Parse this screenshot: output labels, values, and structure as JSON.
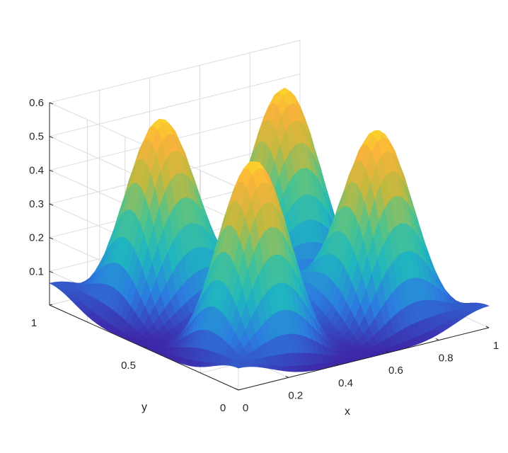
{
  "chart_data": {
    "type": "surface",
    "title": "",
    "xlabel": "x",
    "ylabel": "y",
    "zlabel": "",
    "xlim": [
      0,
      1
    ],
    "ylim": [
      0,
      1
    ],
    "zlim": [
      0,
      0.6
    ],
    "grid": true,
    "colormap": "parula",
    "x_ticks": [
      "0",
      "0.2",
      "0.4",
      "0.6",
      "0.8",
      "1"
    ],
    "y_ticks": [
      "0",
      "0.5",
      "1"
    ],
    "z_ticks": [
      "0.1",
      "0.2",
      "0.3",
      "0.4",
      "0.5",
      "0.6"
    ],
    "peaks": [
      {
        "x": 0.25,
        "y": 0.25,
        "z": 0.62
      },
      {
        "x": 0.75,
        "y": 0.25,
        "z": 0.58
      },
      {
        "x": 0.25,
        "y": 0.75,
        "z": 0.58
      },
      {
        "x": 0.75,
        "y": 0.75,
        "z": 0.62
      }
    ],
    "colors": [
      "#3e26a8",
      "#2c7ce0",
      "#1fb6c0",
      "#4cc38e",
      "#c1b93f",
      "#fbb33b",
      "#f9fb15"
    ]
  }
}
